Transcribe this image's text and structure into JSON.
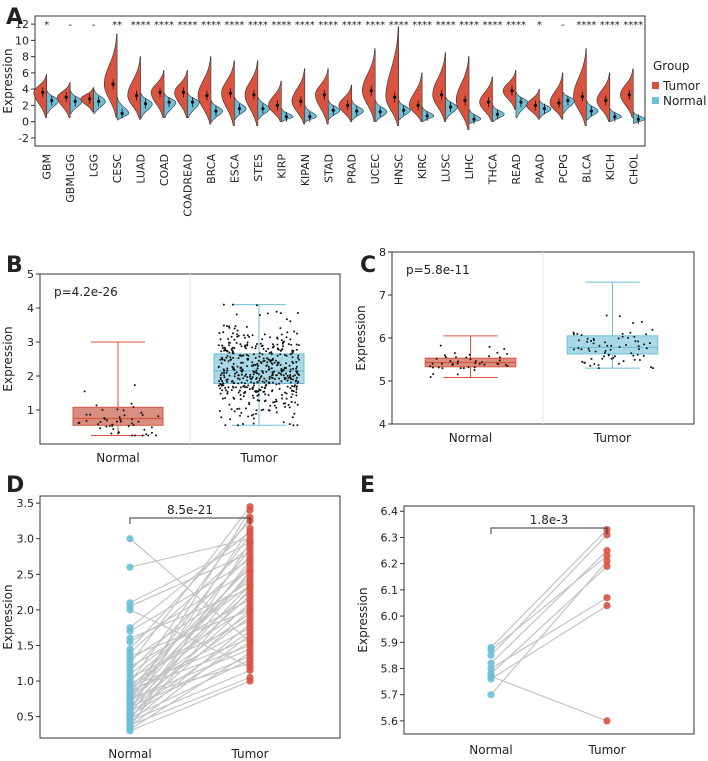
{
  "colors": {
    "tumor": "#D9533F",
    "normal": "#6CBFD6",
    "tumor_box": "#D98F80",
    "normal_box": "#A9D9E6",
    "line": "#c4c4c4"
  },
  "chart_data": [
    {
      "panel": "A",
      "type": "violin",
      "ylabel": "Expression",
      "ylim": [
        -3,
        13
      ],
      "yticks": [
        -2,
        0,
        2,
        4,
        6,
        8,
        10,
        12
      ],
      "grid": false,
      "legend": {
        "title": "Group",
        "entries": [
          "Tumor",
          "Normal"
        ],
        "position": "right"
      },
      "categories": [
        "GBM",
        "GBMLGG",
        "LGG",
        "CESC",
        "LUAD",
        "COAD",
        "COADREAD",
        "BRCA",
        "ESCA",
        "STES",
        "KIRP",
        "KIPAN",
        "STAD",
        "PRAD",
        "UCEC",
        "HNSC",
        "KIRC",
        "LUSC",
        "LIHC",
        "THCA",
        "READ",
        "PAAD",
        "PCPG",
        "BLCA",
        "KICH",
        "CHOL"
      ],
      "significance": [
        "*",
        "-",
        "-",
        "**",
        "****",
        "****",
        "****",
        "****",
        "****",
        "****",
        "****",
        "****",
        "****",
        "****",
        "****",
        "****",
        "****",
        "****",
        "****",
        "****",
        "****",
        "*",
        "-",
        "****",
        "****",
        "****"
      ],
      "series": [
        {
          "name": "Tumor",
          "median": [
            3.6,
            3.0,
            2.8,
            4.6,
            3.2,
            3.6,
            3.6,
            3.2,
            3.5,
            3.3,
            2.0,
            2.5,
            3.3,
            2.0,
            3.8,
            3.0,
            2.0,
            3.3,
            2.6,
            2.4,
            3.8,
            2.0,
            2.3,
            3.1,
            2.6,
            3.3
          ],
          "min": [
            0.5,
            0.5,
            1.2,
            0.5,
            0.3,
            0.5,
            0.5,
            -0.3,
            -0.5,
            -0.5,
            0.0,
            -0.3,
            -0.3,
            0.0,
            0.0,
            -0.5,
            0.0,
            0.0,
            -1.0,
            0.0,
            1.5,
            0.3,
            0.3,
            -0.5,
            0.0,
            0.5
          ],
          "max": [
            5.8,
            4.8,
            4.2,
            10.8,
            8.0,
            6.3,
            6.3,
            8.0,
            7.5,
            7.5,
            5.0,
            6.5,
            6.5,
            4.5,
            9.0,
            11.7,
            6.0,
            8.5,
            8.0,
            5.5,
            6.3,
            4.0,
            6.0,
            9.0,
            6.0,
            6.5
          ]
        },
        {
          "name": "Normal",
          "median": [
            2.6,
            2.5,
            2.5,
            1.0,
            2.2,
            2.4,
            2.4,
            1.3,
            1.6,
            1.6,
            0.6,
            0.6,
            1.4,
            1.3,
            1.2,
            1.4,
            0.7,
            1.8,
            0.3,
            0.9,
            2.4,
            1.6,
            2.6,
            1.3,
            0.6,
            0.3
          ],
          "min": [
            1.0,
            1.0,
            1.0,
            0.2,
            0.5,
            0.5,
            0.5,
            0.0,
            0.3,
            0.3,
            0.0,
            0.0,
            0.3,
            0.2,
            0.0,
            0.2,
            0.0,
            0.3,
            -0.2,
            0.0,
            0.5,
            0.5,
            1.0,
            0.2,
            0.0,
            -0.2
          ],
          "max": [
            3.8,
            3.8,
            4.0,
            3.0,
            3.5,
            3.5,
            3.5,
            2.6,
            3.0,
            3.0,
            1.6,
            2.0,
            2.6,
            2.6,
            2.6,
            2.6,
            1.8,
            3.0,
            1.5,
            2.0,
            3.6,
            2.6,
            3.6,
            2.6,
            1.6,
            1.2
          ]
        }
      ]
    },
    {
      "panel": "B",
      "type": "box",
      "ylabel": "Expression",
      "ylim": [
        0,
        5
      ],
      "yticks": [
        1,
        2,
        3,
        4,
        5
      ],
      "categories": [
        "Normal",
        "Tumor"
      ],
      "pvalue": "p=4.2e-26",
      "boxes": [
        {
          "name": "Normal",
          "min": 0.25,
          "q1": 0.55,
          "median": 0.75,
          "q3": 1.08,
          "max": 3.0,
          "n": 50
        },
        {
          "name": "Tumor",
          "min": 0.55,
          "q1": 1.78,
          "median": 2.15,
          "q3": 2.65,
          "max": 4.1,
          "n": 500
        }
      ]
    },
    {
      "panel": "C",
      "type": "box",
      "ylabel": "Expression",
      "ylim": [
        4,
        8
      ],
      "yticks": [
        4,
        5,
        6,
        7,
        8
      ],
      "categories": [
        "Normal",
        "Tumor"
      ],
      "pvalue": "p=5.8e-11",
      "boxes": [
        {
          "name": "Normal",
          "min": 5.08,
          "q1": 5.33,
          "median": 5.43,
          "q3": 5.53,
          "max": 6.05,
          "n": 45
        },
        {
          "name": "Tumor",
          "min": 5.3,
          "q1": 5.63,
          "median": 5.78,
          "q3": 6.05,
          "max": 7.3,
          "n": 70
        }
      ]
    },
    {
      "panel": "D",
      "type": "paired",
      "ylabel": "Expression",
      "ylim": [
        0.2,
        3.6
      ],
      "yticks": [
        0.5,
        1.0,
        1.5,
        2.0,
        2.5,
        3.0,
        3.5
      ],
      "categories": [
        "Normal",
        "Tumor"
      ],
      "pvalue": "8.5e-21",
      "pairs": [
        [
          3.0,
          1.55
        ],
        [
          2.6,
          3.0
        ],
        [
          2.1,
          2.95
        ],
        [
          2.05,
          2.8
        ],
        [
          2.0,
          1.2
        ],
        [
          1.75,
          3.1
        ],
        [
          1.7,
          2.7
        ],
        [
          1.6,
          2.3
        ],
        [
          1.55,
          2.55
        ],
        [
          1.45,
          3.25
        ],
        [
          1.4,
          2.9
        ],
        [
          1.3,
          2.4
        ],
        [
          1.2,
          2.15
        ],
        [
          1.15,
          2.75
        ],
        [
          1.1,
          2.35
        ],
        [
          1.05,
          1.85
        ],
        [
          1.0,
          2.45
        ],
        [
          0.98,
          3.3
        ],
        [
          0.95,
          2.05
        ],
        [
          0.92,
          1.6
        ],
        [
          0.9,
          2.6
        ],
        [
          0.88,
          2.25
        ],
        [
          0.85,
          1.75
        ],
        [
          0.82,
          3.05
        ],
        [
          0.8,
          2.5
        ],
        [
          0.78,
          1.95
        ],
        [
          0.76,
          2.85
        ],
        [
          0.74,
          1.45
        ],
        [
          0.72,
          2.2
        ],
        [
          0.7,
          3.4
        ],
        [
          0.68,
          2.65
        ],
        [
          0.66,
          1.9
        ],
        [
          0.64,
          1.35
        ],
        [
          0.62,
          2.35
        ],
        [
          0.6,
          3.15
        ],
        [
          0.58,
          2.1
        ],
        [
          0.56,
          1.7
        ],
        [
          0.54,
          2.7
        ],
        [
          0.52,
          1.55
        ],
        [
          0.5,
          2.0
        ],
        [
          0.48,
          1.3
        ],
        [
          0.46,
          2.55
        ],
        [
          0.44,
          1.15
        ],
        [
          0.42,
          1.8
        ],
        [
          0.4,
          2.3
        ],
        [
          0.38,
          1.05
        ],
        [
          0.36,
          1.65
        ],
        [
          0.34,
          2.95
        ],
        [
          0.32,
          1.4
        ],
        [
          0.3,
          1.0
        ],
        [
          1.25,
          3.45
        ],
        [
          1.35,
          2.0
        ],
        [
          0.87,
          1.5
        ],
        [
          0.77,
          1.25
        ]
      ]
    },
    {
      "panel": "E",
      "type": "paired",
      "ylabel": "Expression",
      "ylim": [
        5.55,
        6.42
      ],
      "yticks": [
        5.6,
        5.7,
        5.8,
        5.9,
        6.0,
        6.1,
        6.2,
        6.3,
        6.4
      ],
      "categories": [
        "Normal",
        "Tumor"
      ],
      "pvalue": "1.8e-3",
      "pairs": [
        [
          5.88,
          6.33
        ],
        [
          5.87,
          6.23
        ],
        [
          5.85,
          6.31
        ],
        [
          5.82,
          6.25
        ],
        [
          5.8,
          6.07
        ],
        [
          5.78,
          6.19
        ],
        [
          5.77,
          5.6
        ],
        [
          5.76,
          6.04
        ],
        [
          5.7,
          6.21
        ]
      ]
    }
  ]
}
